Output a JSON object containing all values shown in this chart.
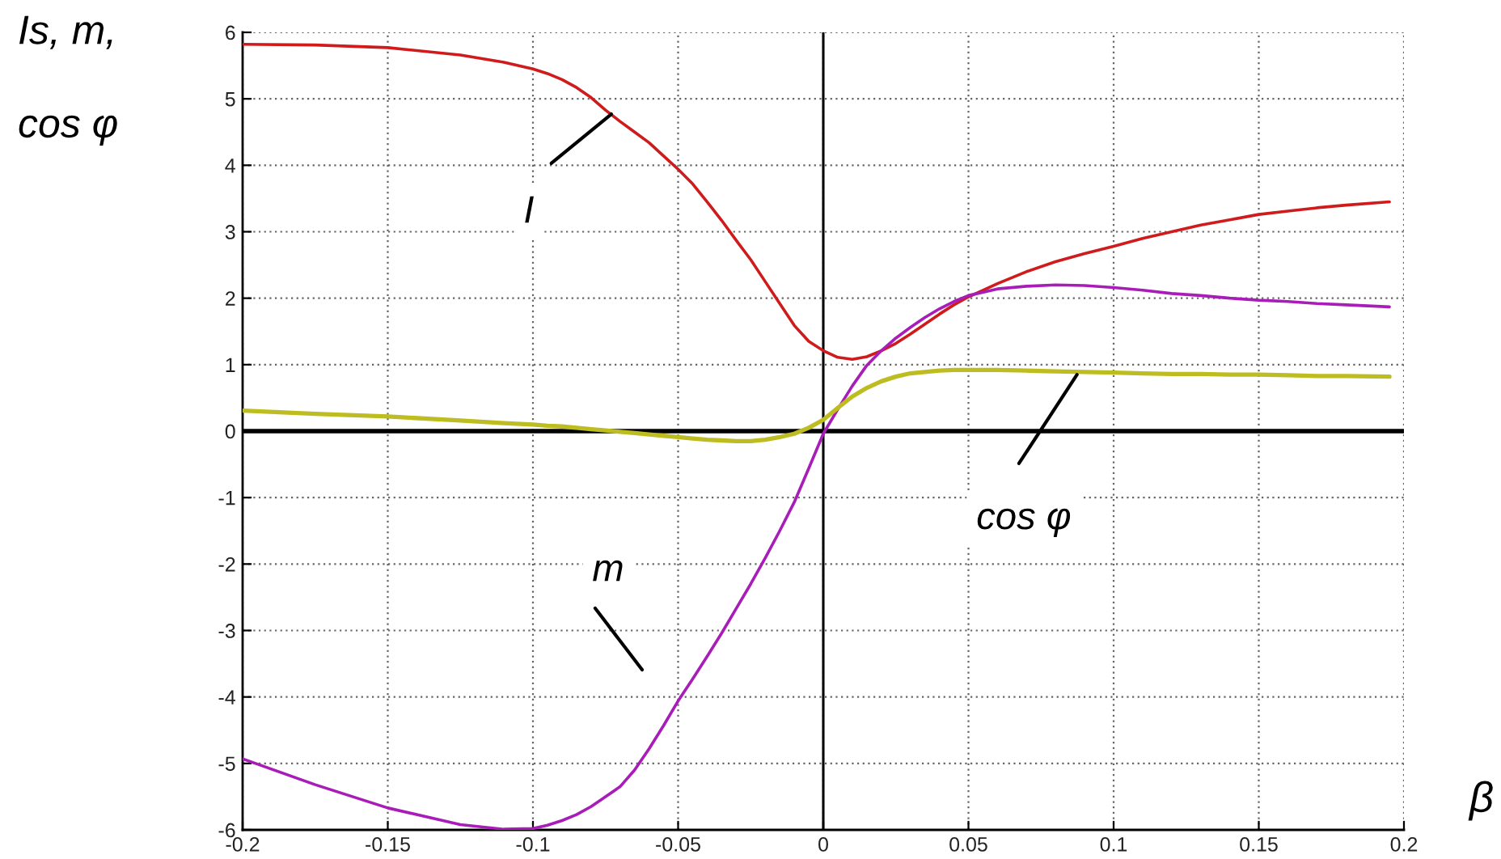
{
  "chart_data": {
    "type": "line",
    "xlabel": "β",
    "ylabel": "Is, m,\ncos φ",
    "x": [
      -0.2,
      -0.175,
      -0.15,
      -0.125,
      -0.11,
      -0.1,
      -0.095,
      -0.09,
      -0.085,
      -0.08,
      -0.075,
      -0.07,
      -0.065,
      -0.06,
      -0.055,
      -0.05,
      -0.045,
      -0.04,
      -0.035,
      -0.03,
      -0.025,
      -0.02,
      -0.015,
      -0.01,
      -0.005,
      0,
      0.005,
      0.01,
      0.015,
      0.02,
      0.025,
      0.03,
      0.035,
      0.04,
      0.045,
      0.05,
      0.06,
      0.07,
      0.08,
      0.09,
      0.1,
      0.11,
      0.12,
      0.13,
      0.14,
      0.15,
      0.16,
      0.17,
      0.18,
      0.195
    ],
    "series": [
      {
        "color": "#cf1b1b",
        "values": [
          5.82,
          5.81,
          5.77,
          5.66,
          5.55,
          5.45,
          5.38,
          5.29,
          5.17,
          5.02,
          4.83,
          4.66,
          4.5,
          4.34,
          4.14,
          3.94,
          3.72,
          3.45,
          3.17,
          2.87,
          2.58,
          2.25,
          1.92,
          1.59,
          1.35,
          1.21,
          1.11,
          1.08,
          1.12,
          1.21,
          1.32,
          1.46,
          1.61,
          1.76,
          1.9,
          2.02,
          2.22,
          2.4,
          2.55,
          2.67,
          2.78,
          2.9,
          3.0,
          3.1,
          3.18,
          3.26,
          3.31,
          3.36,
          3.4,
          3.45
        ]
      },
      {
        "color": "#a81cb8",
        "values": [
          -4.93,
          -5.32,
          -5.67,
          -5.92,
          -5.99,
          -5.98,
          -5.93,
          -5.86,
          -5.77,
          -5.65,
          -5.5,
          -5.35,
          -5.1,
          -4.78,
          -4.43,
          -4.06,
          -3.73,
          -3.39,
          -3.04,
          -2.67,
          -2.3,
          -1.91,
          -1.5,
          -1.07,
          -0.56,
          -0.04,
          0.33,
          0.68,
          0.99,
          1.21,
          1.4,
          1.56,
          1.71,
          1.84,
          1.95,
          2.04,
          2.14,
          2.18,
          2.2,
          2.19,
          2.16,
          2.12,
          2.07,
          2.04,
          2.0,
          1.97,
          1.95,
          1.92,
          1.9,
          1.87
        ]
      },
      {
        "color": "#bdbd22",
        "values": [
          0.31,
          0.26,
          0.22,
          0.16,
          0.12,
          0.1,
          0.08,
          0.07,
          0.05,
          0.03,
          0.01,
          -0.01,
          -0.03,
          -0.05,
          -0.07,
          -0.09,
          -0.11,
          -0.13,
          -0.14,
          -0.15,
          -0.15,
          -0.13,
          -0.09,
          -0.04,
          0.05,
          0.17,
          0.35,
          0.52,
          0.65,
          0.75,
          0.82,
          0.87,
          0.89,
          0.91,
          0.92,
          0.92,
          0.92,
          0.91,
          0.9,
          0.89,
          0.88,
          0.87,
          0.86,
          0.86,
          0.85,
          0.85,
          0.84,
          0.83,
          0.83,
          0.82
        ]
      }
    ],
    "xlim": [
      -0.2,
      0.2
    ],
    "xticks": [
      -0.2,
      -0.15,
      -0.1,
      -0.05,
      0,
      0.05,
      0.1,
      0.15,
      0.2
    ],
    "ylim": [
      -6,
      6
    ],
    "yticks": [
      -6,
      -5,
      -4,
      -3,
      -2,
      -1,
      0,
      1,
      2,
      3,
      4,
      5,
      6
    ],
    "grid": true,
    "ref_lines": [
      {
        "axis": "y",
        "value": 0,
        "color": "#000000"
      },
      {
        "axis": "x",
        "value": 0,
        "color": "#000000"
      }
    ],
    "annotations": [
      {
        "text": "I",
        "x": -0.073,
        "y": 4.77
      },
      "m",
      {
        "text": "cos φ",
        "x": 0.088,
        "y": 0.89
      }
    ]
  }
}
